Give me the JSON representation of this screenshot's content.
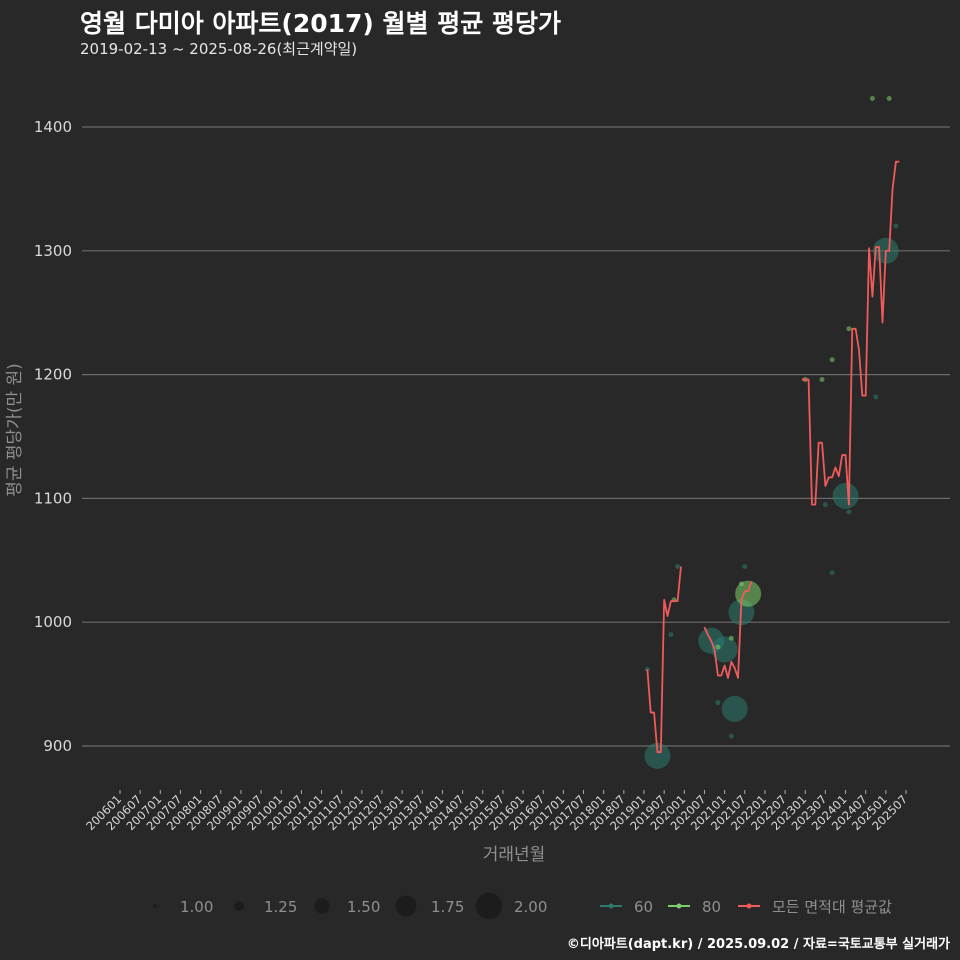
{
  "header": {
    "title": "영월 다미아 아파트(2017) 월별 평균 평당가",
    "subtitle": "2019-02-13 ~ 2025-08-26(최근계약일)"
  },
  "footer": {
    "credit": "©디아파트(dapt.kr) / 2025.09.02 / 자료=국토교통부 실거래가"
  },
  "colors": {
    "background": "#282828",
    "grid": "#6a6a6a",
    "s60": "#2a7a6e",
    "s80": "#7ccf6a",
    "avg": "#f05a5a"
  },
  "chart_data": {
    "type": "line",
    "title": "영월 다미아 아파트(2017) 월별 평균 평당가",
    "subtitle": "2019-02-13 ~ 2025-08-26(최근계약일)",
    "xlabel": "거래년월",
    "ylabel": "평균 평당가(만 원)",
    "ylim": [
      870,
      1430
    ],
    "yticks": [
      900,
      1000,
      1100,
      1200,
      1300,
      1400
    ],
    "xticks": [
      "200601",
      "200607",
      "200701",
      "200707",
      "200801",
      "200807",
      "200901",
      "200907",
      "201001",
      "201007",
      "201101",
      "201107",
      "201201",
      "201207",
      "201301",
      "201307",
      "201401",
      "201407",
      "201501",
      "201507",
      "201601",
      "201607",
      "201701",
      "201707",
      "201801",
      "201807",
      "201901",
      "201907",
      "202001",
      "202007",
      "202101",
      "202107",
      "202201",
      "202207",
      "202301",
      "202307",
      "202401",
      "202407",
      "202501",
      "202507"
    ],
    "grid": true,
    "legend": {
      "size": {
        "title": "",
        "entries": [
          "1.00",
          "1.25",
          "1.50",
          "1.75",
          "2.00"
        ]
      },
      "color": {
        "entries": [
          "60",
          "80",
          "모든 면적대 평균값"
        ]
      }
    },
    "series": [
      {
        "name": "모든 면적대 평균값",
        "type": "line",
        "points": [
          [
            "201902",
            962
          ],
          [
            "201903",
            927
          ],
          [
            "201904",
            927
          ],
          [
            "201905",
            895
          ],
          [
            "201906",
            895
          ],
          [
            "201907",
            1018
          ],
          [
            "201908",
            1005
          ],
          [
            "201909",
            1017
          ],
          [
            "201910",
            1017
          ],
          [
            "201911",
            1017
          ],
          [
            "201912",
            1045
          ],
          [
            "202007",
            996
          ],
          [
            "202008",
            990
          ],
          [
            "202009",
            985
          ],
          [
            "202010",
            978
          ],
          [
            "202011",
            957
          ],
          [
            "202012",
            957
          ],
          [
            "202101",
            965
          ],
          [
            "202102",
            955
          ],
          [
            "202103",
            968
          ],
          [
            "202104",
            963
          ],
          [
            "202105",
            955
          ],
          [
            "202106",
            1018
          ],
          [
            "202107",
            1025
          ],
          [
            "202108",
            1025
          ],
          [
            "202109",
            1033
          ],
          [
            "202212",
            1196
          ],
          [
            "202301",
            1196
          ],
          [
            "202302",
            1196
          ],
          [
            "202303",
            1095
          ],
          [
            "202304",
            1095
          ],
          [
            "202305",
            1145
          ],
          [
            "202306",
            1145
          ],
          [
            "202307",
            1110
          ],
          [
            "202308",
            1117
          ],
          [
            "202309",
            1117
          ],
          [
            "202310",
            1125
          ],
          [
            "202311",
            1118
          ],
          [
            "202312",
            1135
          ],
          [
            "202401",
            1135
          ],
          [
            "202402",
            1095
          ],
          [
            "202403",
            1237
          ],
          [
            "202404",
            1237
          ],
          [
            "202405",
            1220
          ],
          [
            "202406",
            1183
          ],
          [
            "202407",
            1183
          ],
          [
            "202408",
            1302
          ],
          [
            "202409",
            1263
          ],
          [
            "202410",
            1303
          ],
          [
            "202411",
            1303
          ],
          [
            "202412",
            1242
          ],
          [
            "202501",
            1300
          ],
          [
            "202502",
            1300
          ],
          [
            "202503",
            1350
          ],
          [
            "202504",
            1372
          ],
          [
            "202505",
            1372
          ]
        ]
      },
      {
        "name": "60",
        "type": "scatter",
        "points": [
          [
            "201902",
            962,
            1.0
          ],
          [
            "201905",
            892,
            1.75
          ],
          [
            "201909",
            990,
            1.0
          ],
          [
            "201911",
            1045,
            1.0
          ],
          [
            "202009",
            985,
            1.75
          ],
          [
            "202011",
            935,
            1.0
          ],
          [
            "202101",
            978,
            1.75
          ],
          [
            "202103",
            908,
            1.0
          ],
          [
            "202104",
            930,
            1.75
          ],
          [
            "202106",
            1008,
            1.75
          ],
          [
            "202107",
            1045,
            1.0
          ],
          [
            "202307",
            1095,
            1.0
          ],
          [
            "202309",
            1040,
            1.0
          ],
          [
            "202401",
            1102,
            1.75
          ],
          [
            "202402",
            1089,
            1.0
          ],
          [
            "202410",
            1182,
            1.0
          ],
          [
            "202501",
            1300,
            1.75
          ],
          [
            "202504",
            1320,
            1.0
          ]
        ]
      },
      {
        "name": "80",
        "type": "scatter",
        "points": [
          [
            "201910",
            1018,
            1.0
          ],
          [
            "202011",
            980,
            1.0
          ],
          [
            "202103",
            987,
            1.0
          ],
          [
            "202106",
            1031,
            1.0
          ],
          [
            "202108",
            1023,
            1.75
          ],
          [
            "202301",
            1196,
            1.0
          ],
          [
            "202306",
            1196,
            1.0
          ],
          [
            "202309",
            1212,
            1.0
          ],
          [
            "202402",
            1237,
            1.0
          ],
          [
            "202409",
            1423,
            1.0
          ],
          [
            "202502",
            1423,
            1.0
          ]
        ]
      }
    ]
  }
}
